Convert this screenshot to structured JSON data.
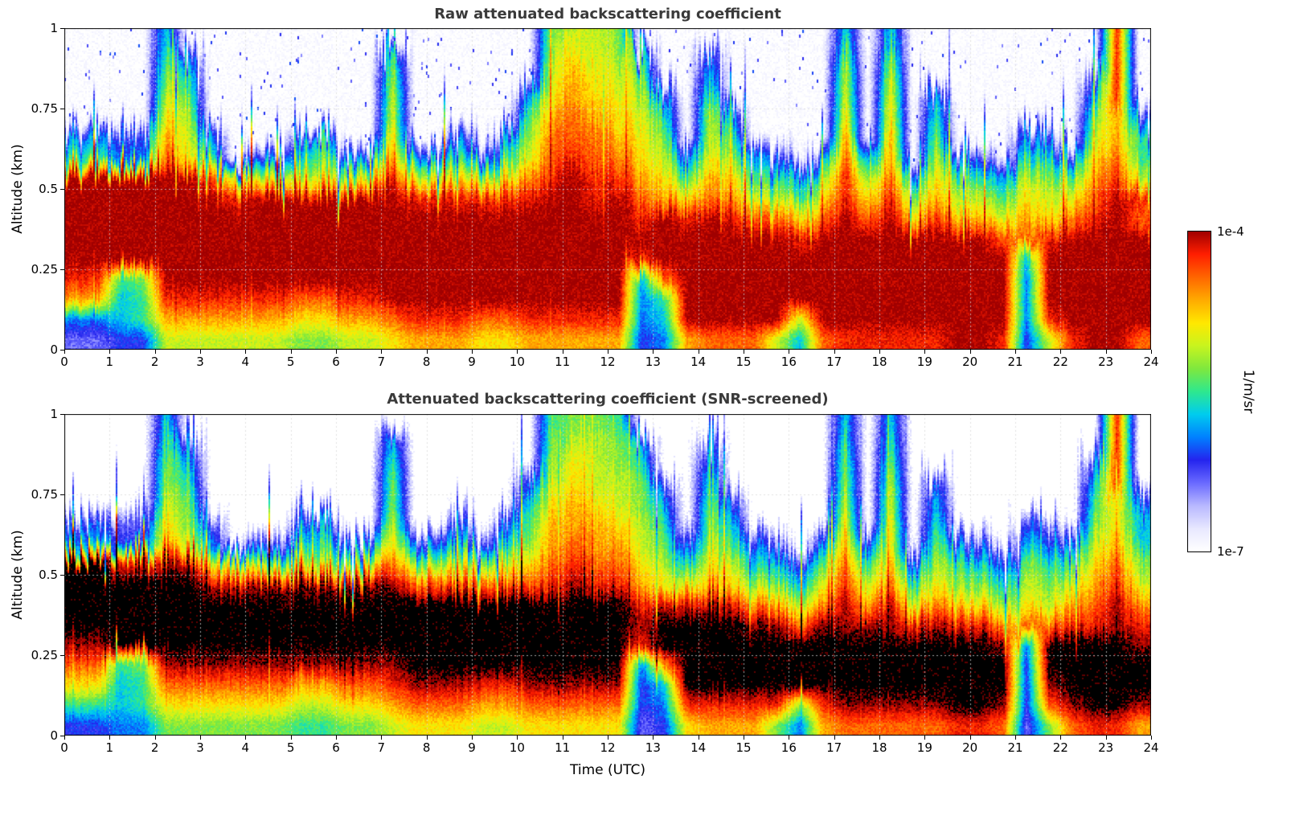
{
  "chart_data": {
    "type": "heatmap",
    "x": {
      "label": "Time (UTC)",
      "range_hours": [
        0,
        24
      ],
      "ticks": [
        "0",
        "1",
        "2",
        "3",
        "4",
        "5",
        "6",
        "7",
        "8",
        "9",
        "10",
        "11",
        "12",
        "13",
        "14",
        "15",
        "16",
        "17",
        "18",
        "19",
        "20",
        "21",
        "22",
        "23",
        "24"
      ]
    },
    "y": {
      "label": "Altitude (km)",
      "range_km": [
        0,
        1
      ],
      "ticks": [
        "0",
        "0.25",
        "0.5",
        "0.75",
        "1"
      ],
      "tick_values": [
        0,
        0.25,
        0.5,
        0.75,
        1
      ]
    },
    "colorbar": {
      "max_label": "1e-4",
      "min_label": "1e-7",
      "unit_label": "1/m/sr",
      "scale": "log",
      "colors": [
        "#ffffff",
        "#e8e8ff",
        "#b8b8ff",
        "#6a6aff",
        "#2424ee",
        "#0080ff",
        "#00ccee",
        "#2ee88e",
        "#7ee83e",
        "#c8f41e",
        "#ffe800",
        "#ffaa00",
        "#ff6600",
        "#ff1e00",
        "#a00000",
        "#000000"
      ]
    },
    "value_encoding": "Each grid cell is a hex level 0-15; value = 1e-7 * 10^(level/15*3) 1/m/sr (0 = below 1e-7 / no signal; 15 = saturated >= 1e-4, drawn black in SNR-screened panel). Grid rows run top (1 km) to bottom (0 km), 16 rows x 48 half-hour columns.",
    "panels": [
      {
        "id": "raw",
        "title": "Raw attenuated backscattering coefficient",
        "speckle_density": [
          2,
          2,
          2,
          1,
          3,
          2,
          2,
          1,
          1,
          1,
          1,
          1,
          1,
          2,
          3,
          2,
          2,
          2,
          2,
          2,
          2,
          3,
          3,
          3,
          3,
          3,
          2,
          1,
          2,
          1,
          1,
          1,
          1,
          1,
          2,
          1,
          2,
          1,
          1,
          1,
          0,
          1,
          1,
          1,
          1,
          1,
          2,
          1
        ],
        "grid": [
          [
            "0000",
            "6000",
            "0000",
            "0000",
            "0000",
            "0899",
            "8000",
            "0000",
            "0060",
            "6000",
            "0000",
            "00d0"
          ],
          [
            "0000",
            "7500",
            "0000",
            "0070",
            "0000",
            "09a9",
            "9700",
            "5000",
            "0080",
            "8000",
            "0000",
            "00d0"
          ],
          [
            "0000",
            "8700",
            "0000",
            "0080",
            "0000",
            "09ba",
            "9800",
            "6000",
            "0090",
            "9000",
            "0000",
            "04d0"
          ],
          [
            "0000",
            "9800",
            "0000",
            "0090",
            "0000",
            "5aba",
            "a950",
            "8000",
            "0090",
            "a060",
            "0000",
            "06d0"
          ],
          [
            "0000",
            "a900",
            "0000",
            "0090",
            "0000",
            "7bcb",
            "a970",
            "9500",
            "00a0",
            "a070",
            "0000",
            "08b4"
          ],
          [
            "5544",
            "b950",
            "0057",
            "00a0",
            "0505",
            "8ccc",
            "ba80",
            "9700",
            "00b0",
            "b080",
            "0054",
            "09b7"
          ],
          [
            "7755",
            "ca70",
            "5478",
            "55b5",
            "5747",
            "9cdc",
            "ca94",
            "a854",
            "05c5",
            "b095",
            "4076",
            "5ac7"
          ],
          [
            "eeee",
            "eec9",
            "a9aa",
            "9ad9",
            "9a9a",
            "bded",
            "dba7",
            "ba77",
            "58d8",
            "c5a8",
            "7598",
            "8bd9"
          ],
          [
            "eeee",
            "eeed",
            "eeee",
            "eeed",
            "dddd",
            "deed",
            "ecba",
            "cb99",
            "7ada",
            "d8b9",
            "97a9",
            "aced"
          ],
          [
            "eeee",
            "eeee",
            "eeee",
            "eeee",
            "eeee",
            "eeee",
            "eded",
            "edcc",
            "acec",
            "eadb",
            "b9ba",
            "cdec"
          ],
          [
            "eeee",
            "eeee",
            "eeee",
            "eeee",
            "eeee",
            "eeee",
            "eeee",
            "eeee",
            "deee",
            "eeee",
            "eccd",
            "eeee"
          ],
          [
            "eeee",
            "eeee",
            "eeee",
            "eeee",
            "eeee",
            "eeee",
            "edee",
            "eeee",
            "eeee",
            "eeee",
            "ee6e",
            "eeee"
          ],
          [
            "dd78",
            "eeee",
            "eeee",
            "eeee",
            "eeee",
            "eeee",
            "e6ce",
            "eeee",
            "eeee",
            "eeee",
            "ee5e",
            "eeee"
          ],
          [
            "bb67",
            "dddd",
            "ddcc",
            "ddee",
            "eeee",
            "eeee",
            "e57e",
            "eeee",
            "eeee",
            "eeee",
            "ee5e",
            "eeee"
          ],
          [
            "5567",
            "bbbb",
            "bbaa",
            "bbcd",
            "ddcc",
            "dddd",
            "d56e",
            "eeee",
            "9eee",
            "eeee",
            "ee5d",
            "eeee"
          ],
          [
            "3344",
            "9999",
            "9988",
            "99ab",
            "bbaa",
            "bbbb",
            "b45b",
            "ccc9",
            "6cdd",
            "ddde",
            "ed49",
            "deec"
          ]
        ]
      },
      {
        "id": "snr_screened",
        "title": "Attenuated backscattering coefficient (SNR-screened)",
        "speckle_density": null,
        "grid": [
          [
            "0000",
            "6000",
            "0000",
            "0000",
            "0000",
            "0788",
            "7000",
            "0000",
            "0060",
            "6000",
            "0000",
            "00d0"
          ],
          [
            "0000",
            "7400",
            "0000",
            "0060",
            "0000",
            "0899",
            "8600",
            "4000",
            "0070",
            "7000",
            "0000",
            "00d0"
          ],
          [
            "0000",
            "8600",
            "0000",
            "0070",
            "0000",
            "08a9",
            "8700",
            "6000",
            "0080",
            "8000",
            "0000",
            "04d0"
          ],
          [
            "0000",
            "8700",
            "0000",
            "0080",
            "0000",
            "49a9",
            "9840",
            "7000",
            "0080",
            "9050",
            "0000",
            "06d0"
          ],
          [
            "0000",
            "9800",
            "0000",
            "0080",
            "0000",
            "6aba",
            "9860",
            "8400",
            "0090",
            "9060",
            "0000",
            "07a4"
          ],
          [
            "4433",
            "a840",
            "0046",
            "0090",
            "0404",
            "7bbb",
            "a970",
            "8600",
            "00a0",
            "a070",
            "0043",
            "08a6"
          ],
          [
            "6644",
            "b960",
            "4367",
            "44a4",
            "4636",
            "8bcb",
            "b983",
            "9743",
            "04b4",
            "a084",
            "3065",
            "49b6"
          ],
          [
            "ffdd",
            "eeb8",
            "9899",
            "89c8",
            "8989",
            "acdc",
            "ca96",
            "a966",
            "47c7",
            "b497",
            "6487",
            "7ac8"
          ],
          [
            "ffff",
            "ffed",
            "eeee",
            "eeec",
            "cccc",
            "cded",
            "dba9",
            "ba88",
            "69d9",
            "c7a8",
            "8698",
            "9bd9"
          ],
          [
            "ffff",
            "ffff",
            "ffff",
            "ffff",
            "ffff",
            "ffff",
            "fded",
            "edbb",
            "9beb",
            "e9ca",
            "a8a9",
            "bceb"
          ],
          [
            "ffff",
            "ffff",
            "ffff",
            "ffff",
            "ffff",
            "ffff",
            "feff",
            "ffee",
            "ceee",
            "eded",
            "dbcc",
            "dded"
          ],
          [
            "eeff",
            "ffff",
            "ffff",
            "ffff",
            "ffff",
            "ffff",
            "fdff",
            "ffff",
            "ffff",
            "ffff",
            "fe5f",
            "fffe"
          ],
          [
            "cc78",
            "eeee",
            "eeee",
            "eeef",
            "ffff",
            "ffff",
            "f5bf",
            "ffff",
            "ffff",
            "ffff",
            "ff4f",
            "ffff"
          ],
          [
            "aa67",
            "cccc",
            "ccbb",
            "ccde",
            "eedd",
            "eeee",
            "e46f",
            "ffff",
            "ffff",
            "ffff",
            "ff4e",
            "ffff"
          ],
          [
            "7767",
            "aaaa",
            "aa99",
            "aabc",
            "ccbb",
            "cccc",
            "c45d",
            "dddd",
            "8dee",
            "eeef",
            "fe4c",
            "effe"
          ],
          [
            "4455",
            "8888",
            "8877",
            "889a",
            "aa99",
            "aaaa",
            "a34a",
            "bbb8",
            "5bcc",
            "cccd",
            "dc38",
            "cddb"
          ]
        ]
      }
    ]
  }
}
